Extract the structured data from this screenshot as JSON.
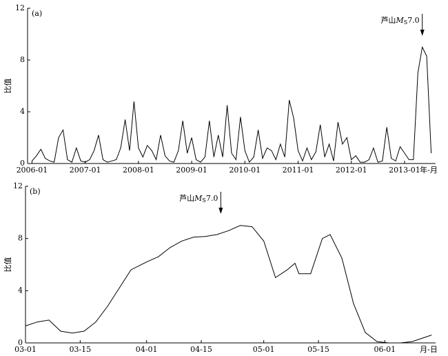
{
  "chart_data": [
    {
      "type": "line",
      "panel_label": "(a)",
      "y_label": "比值",
      "x_label": "年-月",
      "x": [
        "2006-01",
        "2006-02",
        "2006-03",
        "2006-04",
        "2006-05",
        "2006-06",
        "2006-07",
        "2006-08",
        "2006-09",
        "2006-10",
        "2006-11",
        "2006-12",
        "2007-01",
        "2007-02",
        "2007-03",
        "2007-04",
        "2007-05",
        "2007-06",
        "2007-07",
        "2007-08",
        "2007-09",
        "2007-10",
        "2007-11",
        "2007-12",
        "2008-01",
        "2008-02",
        "2008-03",
        "2008-04",
        "2008-05",
        "2008-06",
        "2008-07",
        "2008-08",
        "2008-09",
        "2008-10",
        "2008-11",
        "2008-12",
        "2009-01",
        "2009-02",
        "2009-03",
        "2009-04",
        "2009-05",
        "2009-06",
        "2009-07",
        "2009-08",
        "2009-09",
        "2009-10",
        "2009-11",
        "2009-12",
        "2010-01",
        "2010-02",
        "2010-03",
        "2010-04",
        "2010-05",
        "2010-06",
        "2010-07",
        "2010-08",
        "2010-09",
        "2010-10",
        "2010-11",
        "2010-12",
        "2011-01",
        "2011-02",
        "2011-03",
        "2011-04",
        "2011-05",
        "2011-06",
        "2011-07",
        "2011-08",
        "2011-09",
        "2011-10",
        "2011-11",
        "2011-12",
        "2012-01",
        "2012-02",
        "2012-03",
        "2012-04",
        "2012-05",
        "2012-06",
        "2012-07",
        "2012-08",
        "2012-09",
        "2012-10",
        "2012-11",
        "2012-12",
        "2013-01",
        "2013-02",
        "2013-03",
        "2013-04",
        "2013-05",
        "2013-06",
        "2013-07"
      ],
      "series": [
        {
          "color": "#000000",
          "values": [
            0.2,
            0.6,
            1.1,
            0.4,
            0.2,
            0.1,
            2.0,
            2.6,
            0.3,
            0.1,
            1.2,
            0.2,
            0.1,
            0.3,
            1.0,
            2.2,
            0.3,
            0.1,
            0.2,
            0.3,
            1.2,
            3.4,
            1.0,
            4.8,
            1.2,
            0.5,
            1.4,
            1.0,
            0.3,
            2.2,
            0.6,
            0.2,
            0.1,
            1.0,
            3.3,
            0.8,
            2.0,
            0.3,
            0.1,
            0.5,
            3.3,
            0.5,
            2.2,
            0.5,
            4.5,
            0.8,
            0.3,
            3.6,
            1.0,
            0.1,
            0.5,
            2.6,
            0.4,
            1.2,
            1.0,
            0.3,
            1.5,
            0.5,
            4.9,
            3.5,
            1.0,
            0.2,
            1.2,
            0.3,
            0.9,
            3.0,
            0.5,
            1.5,
            0.2,
            3.2,
            1.5,
            2.0,
            0.3,
            0.6,
            0.1,
            0.1,
            0.3,
            1.2,
            0.1,
            0.2,
            2.8,
            0.4,
            0.2,
            1.3,
            0.8,
            0.3,
            0.3,
            7.0,
            9.0,
            8.3,
            0.8
          ]
        }
      ],
      "xlim": [
        "2005-12",
        "2013-08"
      ],
      "xticks": [
        "2006-01",
        "2007-01",
        "2008-01",
        "2009-01",
        "2010-01",
        "2011-01",
        "2012-01",
        "2013-01"
      ],
      "ylim": [
        0,
        12
      ],
      "yticks": [
        0,
        4,
        8,
        12
      ],
      "annotation": {
        "x": "2013-05",
        "text": [
          "芦山",
          "M",
          "S",
          "7.0"
        ]
      }
    },
    {
      "type": "line",
      "panel_label": "(b)",
      "y_label": "比值",
      "x_label": "月-日",
      "x": [
        "03-01",
        "03-04",
        "03-07",
        "03-10",
        "03-13",
        "03-16",
        "03-19",
        "03-22",
        "03-25",
        "03-28",
        "04-01",
        "04-04",
        "04-07",
        "04-10",
        "04-13",
        "04-16",
        "04-19",
        "04-22",
        "04-25",
        "04-28",
        "05-01",
        "05-04",
        "05-07",
        "05-09",
        "05-10",
        "05-13",
        "05-16",
        "05-18",
        "05-21",
        "05-24",
        "05-27",
        "05-30",
        "06-02",
        "06-05",
        "06-08",
        "06-13"
      ],
      "series": [
        {
          "color": "#000000",
          "values": [
            1.3,
            1.6,
            1.75,
            0.9,
            0.75,
            0.9,
            1.6,
            2.8,
            4.2,
            5.6,
            6.2,
            6.6,
            7.3,
            7.8,
            8.1,
            8.15,
            8.3,
            8.6,
            9.0,
            8.9,
            7.8,
            5.0,
            5.6,
            6.1,
            5.3,
            5.3,
            8.0,
            8.3,
            6.5,
            3.0,
            0.8,
            0.1,
            0,
            0,
            0.1,
            0.6
          ]
        }
      ],
      "xlim": [
        "03-01",
        "06-14"
      ],
      "xticks": [
        "03-01",
        "03-15",
        "04-01",
        "04-15",
        "05-01",
        "05-15",
        "06-01"
      ],
      "ylim": [
        0,
        12
      ],
      "yticks": [
        0,
        4,
        8,
        12
      ],
      "annotation": {
        "x": "04-20",
        "text": [
          "芦山",
          "M",
          "S",
          "7.0"
        ]
      }
    }
  ]
}
